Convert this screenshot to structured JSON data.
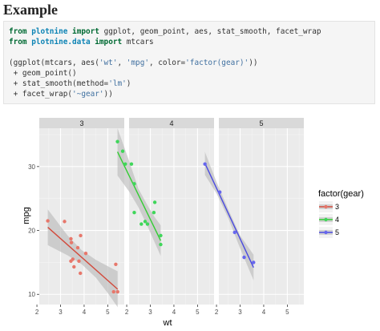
{
  "heading": "Example",
  "code": {
    "line1": {
      "kw1": "from",
      "mod": "plotnine",
      "kw2": "import",
      "rest": " ggplot, geom_point, aes, stat_smooth, facet_wrap"
    },
    "line2": {
      "kw1": "from",
      "mod": "plotnine.data",
      "kw2": "import",
      "rest": " mtcars"
    },
    "line3": {
      "a": "(ggplot(mtcars, aes(",
      "s1": "'wt'",
      "b": ", ",
      "s2": "'mpg'",
      "c": ", color=",
      "s3": "'factor(gear)'",
      "d": "))"
    },
    "line4": " + geom_point()",
    "line5": {
      "a": " + stat_smooth(method=",
      "s": "'lm'",
      "b": ")"
    },
    "line6": {
      "a": " + facet_wrap(",
      "s": "'~gear'",
      "b": "))"
    }
  },
  "colors": {
    "gear3": "#e7776b",
    "gear4": "#3fd65a",
    "gear5": "#6666ee",
    "line3": "#d24a3c",
    "line4": "#33cc33",
    "line5": "#4a4ae0",
    "panel": "#ebebeb",
    "strip": "#d9d9d9",
    "band": "#bbbbbb"
  },
  "chart_data": {
    "type": "scatter",
    "xlabel": "wt",
    "ylabel": "mpg",
    "xlim": [
      2.1,
      5.7
    ],
    "ylim": [
      8.4,
      36.0
    ],
    "xticks": [
      2,
      3,
      4,
      5
    ],
    "yticks": [
      10,
      20,
      30
    ],
    "legend": {
      "title": "factor(gear)",
      "position": "right",
      "entries": [
        "3",
        "4",
        "5"
      ]
    },
    "facets": [
      {
        "label": "3",
        "points": [
          [
            2.46,
            21.5
          ],
          [
            3.17,
            21.4
          ],
          [
            3.44,
            18.7
          ],
          [
            3.46,
            18.1
          ],
          [
            3.57,
            14.3
          ],
          [
            3.73,
            17.3
          ],
          [
            3.78,
            15.2
          ],
          [
            3.44,
            15.2
          ],
          [
            3.52,
            15.5
          ],
          [
            3.84,
            13.3
          ],
          [
            3.85,
            19.2
          ],
          [
            4.07,
            16.4
          ],
          [
            5.25,
            10.4
          ],
          [
            5.42,
            10.4
          ],
          [
            5.34,
            14.7
          ]
        ],
        "fit": [
          [
            2.46,
            20.5
          ],
          [
            5.42,
            10.8
          ]
        ],
        "band_upper": [
          [
            2.46,
            23.3
          ],
          [
            3.3,
            19.2
          ],
          [
            3.9,
            16.9
          ],
          [
            4.5,
            15.4
          ],
          [
            5.0,
            14.4
          ],
          [
            5.42,
            13.6
          ]
        ],
        "band_lower": [
          [
            2.46,
            17.7
          ],
          [
            3.3,
            16.1
          ],
          [
            3.9,
            14.7
          ],
          [
            4.5,
            12.6
          ],
          [
            5.0,
            10.2
          ],
          [
            5.42,
            8.0
          ]
        ]
      },
      {
        "label": "4",
        "points": [
          [
            1.61,
            33.9
          ],
          [
            1.83,
            32.4
          ],
          [
            1.94,
            30.4
          ],
          [
            2.2,
            30.4
          ],
          [
            2.32,
            22.8
          ],
          [
            2.62,
            21.0
          ],
          [
            2.78,
            21.4
          ],
          [
            2.88,
            21.0
          ],
          [
            3.19,
            24.4
          ],
          [
            3.15,
            22.8
          ],
          [
            3.44,
            19.2
          ],
          [
            3.44,
            17.8
          ],
          [
            2.32,
            27.3
          ]
        ],
        "fit": [
          [
            1.61,
            32.3
          ],
          [
            3.44,
            18.4
          ]
        ],
        "band_upper": [
          [
            1.61,
            36.0
          ],
          [
            2.1,
            30.9
          ],
          [
            2.5,
            26.5
          ],
          [
            2.9,
            23.8
          ],
          [
            3.2,
            22.0
          ],
          [
            3.44,
            20.8
          ]
        ],
        "band_lower": [
          [
            1.61,
            28.6
          ],
          [
            2.1,
            26.1
          ],
          [
            2.5,
            23.6
          ],
          [
            2.9,
            20.5
          ],
          [
            3.2,
            18.0
          ],
          [
            3.44,
            16.0
          ]
        ]
      },
      {
        "label": "5",
        "points": [
          [
            1.51,
            30.4
          ],
          [
            2.14,
            26.0
          ],
          [
            2.77,
            19.7
          ],
          [
            3.17,
            15.8
          ],
          [
            3.57,
            15.0
          ]
        ],
        "fit": [
          [
            1.51,
            30.5
          ],
          [
            3.57,
            14.2
          ]
        ],
        "band_upper": [
          [
            1.51,
            32.3
          ],
          [
            2.0,
            27.6
          ],
          [
            2.5,
            23.3
          ],
          [
            3.0,
            19.2
          ],
          [
            3.57,
            16.2
          ]
        ],
        "band_lower": [
          [
            1.51,
            28.7
          ],
          [
            2.0,
            25.8
          ],
          [
            2.5,
            21.9
          ],
          [
            3.0,
            17.2
          ],
          [
            3.57,
            12.2
          ]
        ]
      }
    ]
  }
}
